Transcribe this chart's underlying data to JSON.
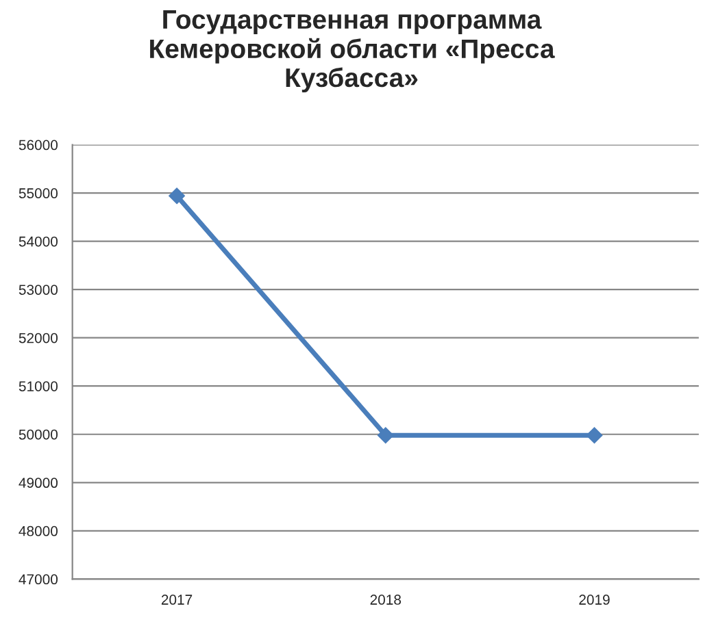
{
  "chart_data": {
    "type": "line",
    "title": "Государственная программа\nКемеровской области «Пресса\nКузбасса»",
    "categories": [
      "2017",
      "2018",
      "2019"
    ],
    "series": [
      {
        "color": "#4a7ebb",
        "values": [
          54940,
          49980,
          49980
        ]
      }
    ],
    "ylim": [
      47000,
      56000
    ],
    "yticks": [
      47000,
      48000,
      49000,
      50000,
      51000,
      52000,
      53000,
      54000,
      55000,
      56000
    ],
    "grid": "y",
    "marker": "diamond",
    "line_style": "solid"
  }
}
